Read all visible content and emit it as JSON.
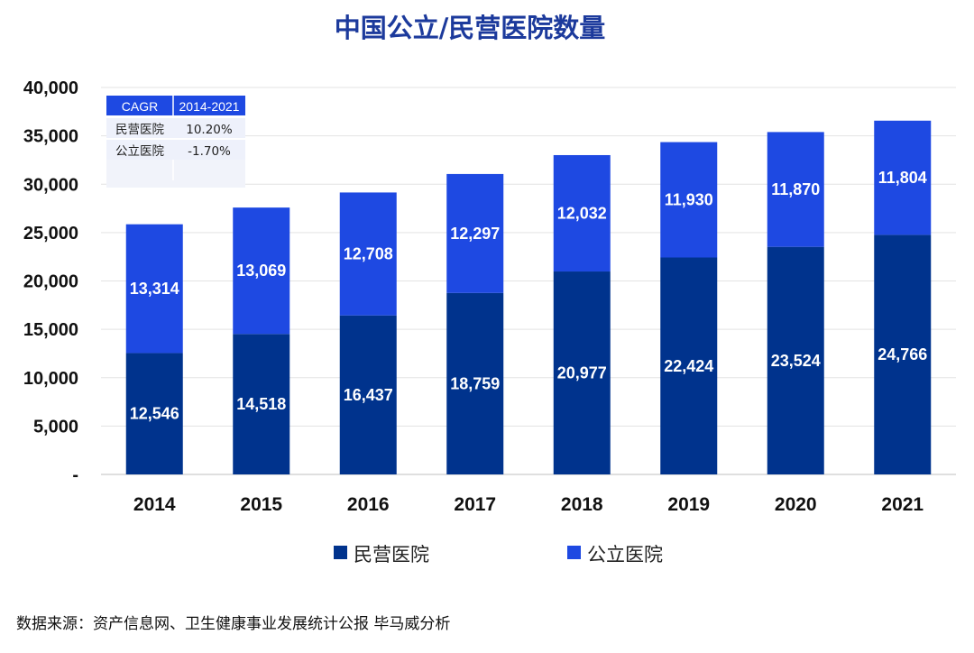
{
  "chart_data": {
    "type": "bar",
    "stacked": true,
    "title": "中国公立/民营医院数量",
    "categories": [
      "2014",
      "2015",
      "2016",
      "2017",
      "2018",
      "2019",
      "2020",
      "2021"
    ],
    "series": [
      {
        "name": "民营医院",
        "color": "#00338d",
        "values": [
          12546,
          14518,
          16437,
          18759,
          20977,
          22424,
          23524,
          24766
        ],
        "labels": [
          "12,546",
          "14,518",
          "16,437",
          "18,759",
          "20,977",
          "22,424",
          "23,524",
          "24,766"
        ]
      },
      {
        "name": "公立医院",
        "color": "#1e49e2",
        "values": [
          13314,
          13069,
          12708,
          12297,
          12032,
          11930,
          11870,
          11804
        ],
        "labels": [
          "13,314",
          "13,069",
          "12,708",
          "12,297",
          "12,032",
          "11,930",
          "11,870",
          "11,804"
        ]
      }
    ],
    "ylim": [
      0,
      40000
    ],
    "yticks": [
      0,
      5000,
      10000,
      15000,
      20000,
      25000,
      30000,
      35000,
      40000
    ],
    "ytick_labels": [
      "-",
      "5,000",
      "10,000",
      "15,000",
      "20,000",
      "25,000",
      "30,000",
      "35,000",
      "40,000"
    ],
    "xlabel": "",
    "ylabel": "",
    "grid": true,
    "legend_position": "bottom-center"
  },
  "cagr_table": {
    "header": [
      "CAGR",
      "2014-2021"
    ],
    "rows": [
      [
        "民营医院",
        "10.20%"
      ],
      [
        "公立医院",
        "-1.70%"
      ]
    ]
  },
  "source_note": "数据来源：资产信息网、卫生健康事业发展统计公报 毕马威分析"
}
